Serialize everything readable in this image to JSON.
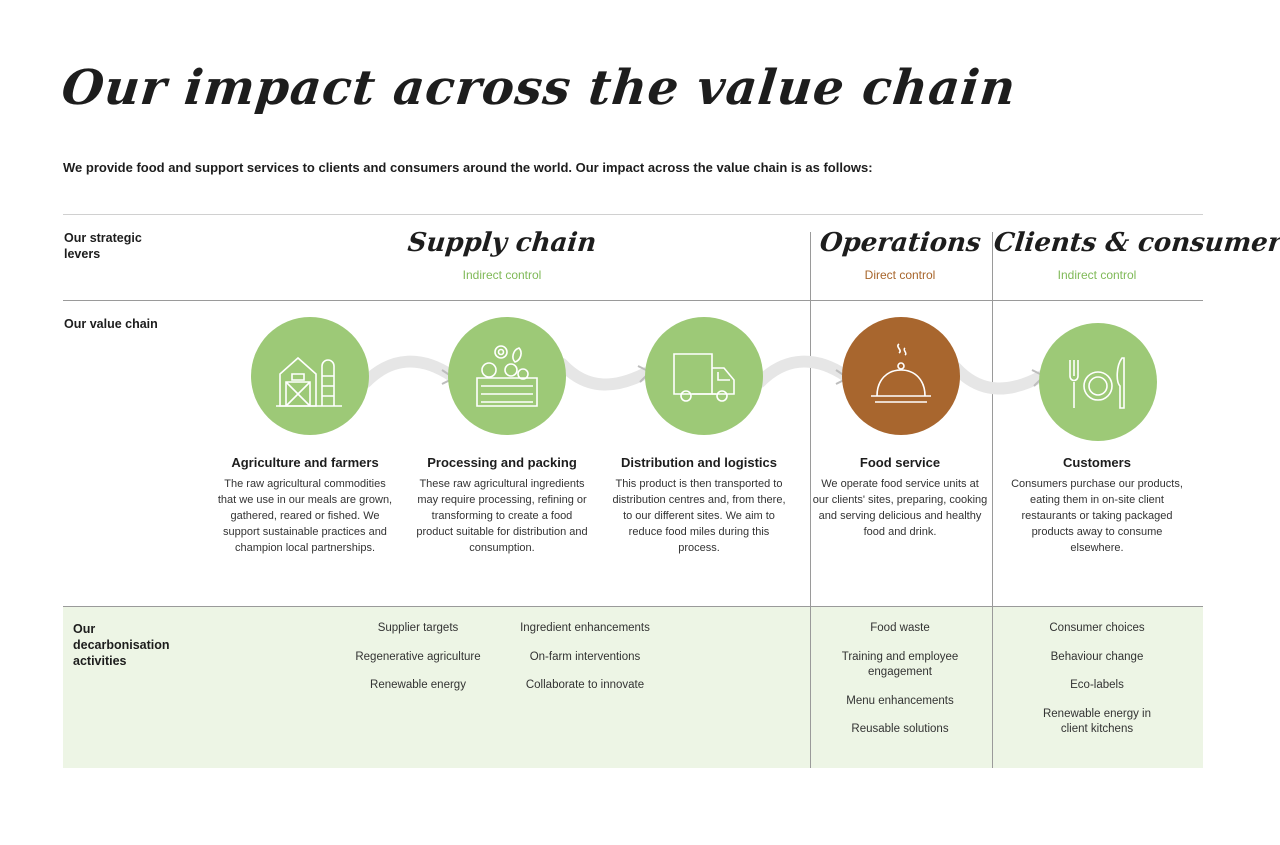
{
  "title": "Our impact across the value chain",
  "intro": "We provide food and support services to clients and consumers around the world. Our impact across the value chain is as follows:",
  "row_labels": {
    "levers": "Our strategic levers",
    "value_chain": "Our value chain",
    "decarbonisation": "Our decarbonisation activities"
  },
  "levers": [
    {
      "name": "Supply chain",
      "control": "Indirect control"
    },
    {
      "name": "Operations",
      "control": "Direct control"
    },
    {
      "name": "Clients & consumers",
      "control": "Indirect control"
    }
  ],
  "stages": [
    {
      "icon": "farm-barn-icon",
      "title": "Agriculture and farmers",
      "text": "The raw agricultural commodities that we use in our meals are grown, gathered, reared or fished. We support sustainable practices and champion local partnerships."
    },
    {
      "icon": "produce-crate-icon",
      "title": "Processing and packing",
      "text": "These raw agricultural ingredients may require processing, refining or transforming to create a food product suitable for distribution and consumption."
    },
    {
      "icon": "delivery-truck-icon",
      "title": "Distribution and logistics",
      "text": "This product is then transported to distribution centres and, from there, to our different sites. We aim to reduce food miles during this process."
    },
    {
      "icon": "serving-cloche-icon",
      "title": "Food service",
      "text": "We operate food service units at our clients' sites, preparing, cooking and serving delicious and healthy food and drink."
    },
    {
      "icon": "plate-cutlery-icon",
      "title": "Customers",
      "text": "Consumers purchase our products, eating them in on-site client restaurants or taking packaged products away to consume elsewhere."
    }
  ],
  "activities": {
    "supply_col1": [
      "Supplier targets",
      "Regenerative agriculture",
      "Renewable energy"
    ],
    "supply_col2": [
      "Ingredient enhancements",
      "On-farm interventions",
      "Collaborate to innovate"
    ],
    "operations": [
      "Food waste",
      "Training and employee engagement",
      "Menu enhancements",
      "Reusable solutions"
    ],
    "clients": [
      "Consumer choices",
      "Behaviour change",
      "Eco-labels",
      "Renewable energy in client kitchens"
    ]
  },
  "colors": {
    "green": "#9dc977",
    "brown": "#a8662e",
    "decarb_bg": "#edf5e5"
  }
}
